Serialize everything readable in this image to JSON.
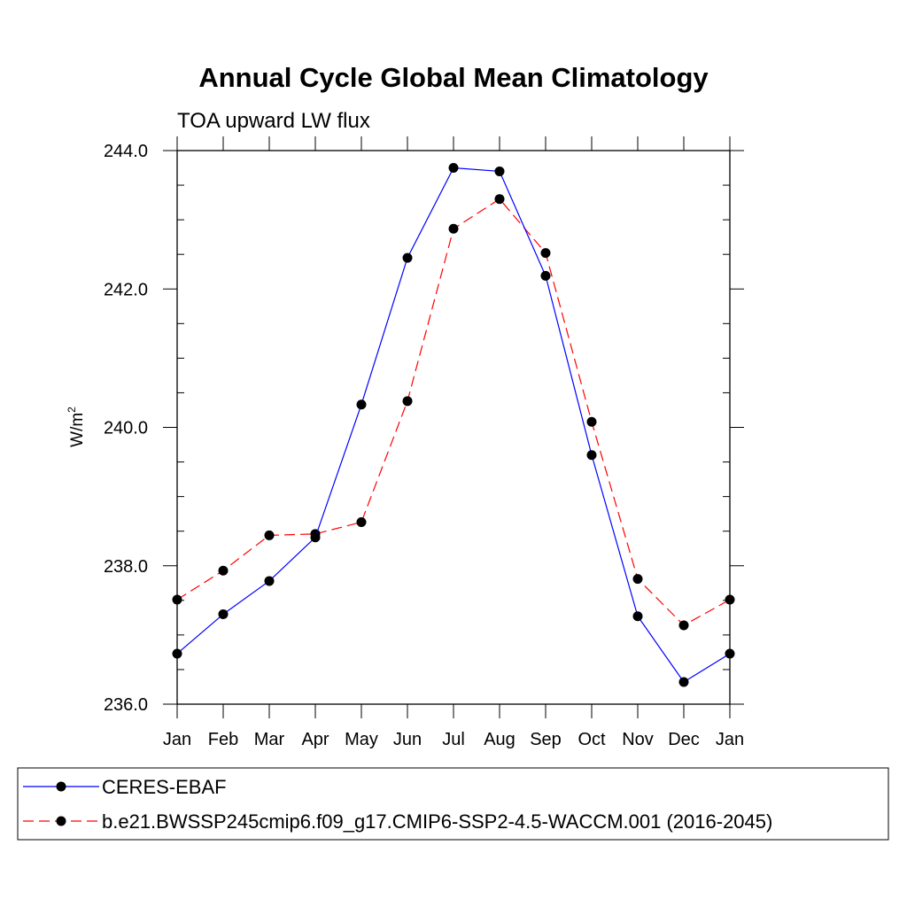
{
  "chart_data": {
    "type": "line",
    "title": "Annual Cycle Global Mean Climatology",
    "subtitle": "TOA upward LW flux",
    "ylabel": "W/m",
    "ylabel_superscript": "2",
    "xlabel": "",
    "categories": [
      "Jan",
      "Feb",
      "Mar",
      "Apr",
      "May",
      "Jun",
      "Jul",
      "Aug",
      "Sep",
      "Oct",
      "Nov",
      "Dec",
      "Jan"
    ],
    "ylim": [
      236.0,
      244.0
    ],
    "yticks": [
      236.0,
      238.0,
      240.0,
      242.0,
      244.0
    ],
    "ytick_labels": [
      "236.0",
      "238.0",
      "240.0",
      "242.0",
      "244.0"
    ],
    "grid": false,
    "legend_position": "bottom",
    "series": [
      {
        "name": "CERES-EBAF",
        "color": "#0000ff",
        "dash": "solid",
        "marker": "filled-circle",
        "values": [
          236.73,
          237.3,
          237.78,
          238.41,
          240.33,
          242.45,
          243.75,
          243.7,
          242.19,
          239.6,
          237.27,
          236.32,
          236.73
        ]
      },
      {
        "name": "b.e21.BWSSP245cmip6.f09_g17.CMIP6-SSP2-4.5-WACCM.001 (2016-2045)",
        "color": "#ff0000",
        "dash": "dashed",
        "marker": "filled-circle",
        "values": [
          237.51,
          237.93,
          238.44,
          238.46,
          238.63,
          240.38,
          242.87,
          243.3,
          242.52,
          240.08,
          237.81,
          237.14,
          237.51
        ]
      }
    ]
  }
}
